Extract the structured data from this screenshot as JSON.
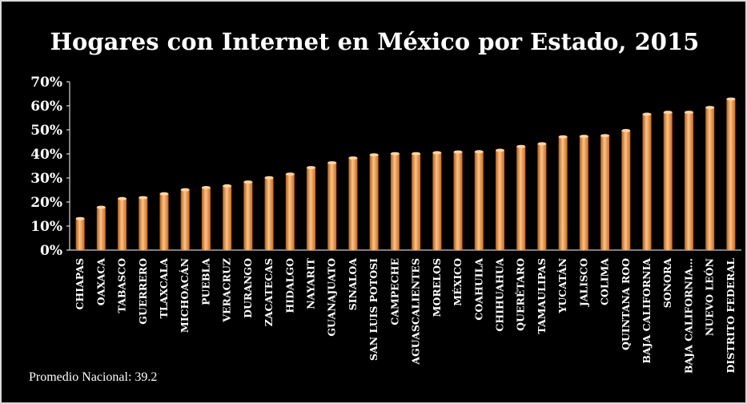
{
  "chart_data": {
    "type": "bar",
    "title": "Hogares con Internet en México por Estado, 2015",
    "xlabel": "",
    "ylabel": "",
    "ylim": [
      0,
      70
    ],
    "yticks": [
      "0%",
      "10%",
      "20%",
      "30%",
      "40%",
      "50%",
      "60%",
      "70%"
    ],
    "grid": false,
    "legend": "none",
    "bar_color": "#f0913c",
    "categories": [
      "CHIAPAS",
      "OAXACA",
      "TABASCO",
      "GUERRERO",
      "TLAXCALA",
      "MICHOACÁN",
      "PUEBLA",
      "VERACRUZ",
      "DURANGO",
      "ZACATECAS",
      "HIDALGO",
      "NAYARIT",
      "GUANAJUATO",
      "SINALOA",
      "SAN LUIS POTOSI",
      "CAMPECHE",
      "AGUASCALIENTES",
      "MORELOS",
      "MÉXICO",
      "COAHUILA",
      "CHIHUAHUA",
      "QUERÉTARO",
      "TAMAULIPAS",
      "YUCATÁN",
      "JALISCO",
      "COLIMA",
      "QUINTANA ROO",
      "BAJA CALIFORNIA",
      "SONORA",
      "BAJA CALIFORNIA…",
      "NUEVO LEÓN",
      "DISTRITO FEDERAL"
    ],
    "values": [
      13.1,
      17.8,
      21.4,
      21.8,
      23.4,
      25.1,
      26.0,
      26.7,
      28.3,
      30.1,
      31.6,
      34.3,
      36.3,
      38.3,
      39.6,
      40.1,
      40.1,
      40.5,
      40.8,
      40.9,
      41.5,
      43.1,
      44.2,
      47.1,
      47.3,
      47.6,
      49.7,
      56.5,
      57.3,
      57.3,
      59.3,
      62.8
    ],
    "annotation": "Promedio Nacional: 39.2"
  }
}
